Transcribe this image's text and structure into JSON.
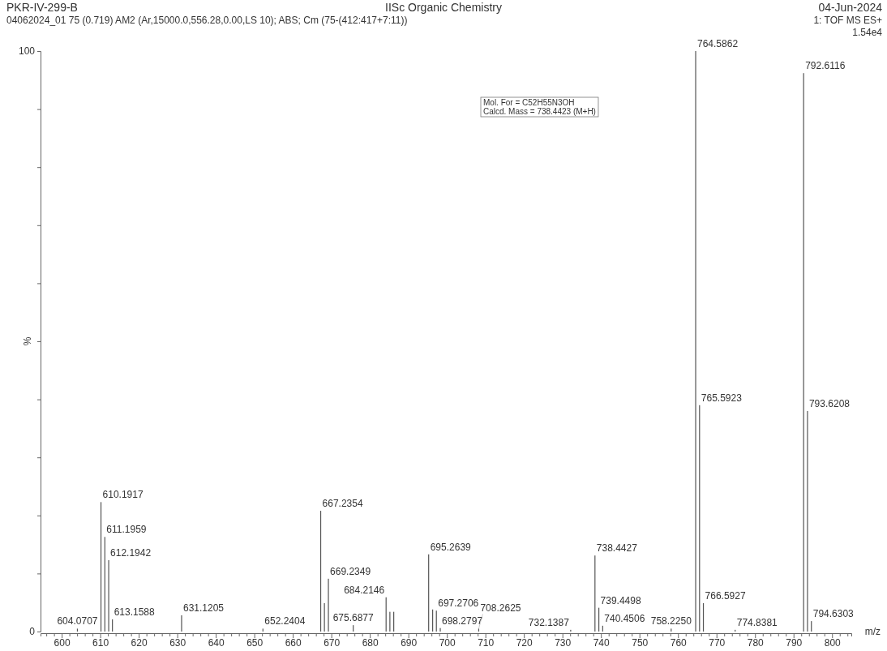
{
  "chart_data": {
    "type": "bar",
    "title": "IISc Organic Chemistry",
    "subtitle": "04062024_01 75 (0.719) AM2 (Ar,15000.0,556.28,0.00,LS 10); ABS; Cm (75-(412:417+7:11))",
    "xlabel": "m/z",
    "ylabel": "%",
    "annotations": [
      "PKR-IV-299-B",
      "04-Jun-2024",
      "1: TOF MS ES+",
      "1.54e4",
      "Mol. For = C52H55N3OH\nCalcd. Mass = 738.4423 (M+H)",
      {
        "text": "604.0707",
        "x": 604.0707,
        "y": 0.5
      },
      {
        "text": "610.1917",
        "x": 610.1917,
        "y": 22.3
      },
      {
        "text": "611.1959",
        "x": 611.1959,
        "y": 16.3
      },
      {
        "text": "612.1942",
        "x": 612.1942,
        "y": 12.3
      },
      {
        "text": "613.1588",
        "x": 613.1588,
        "y": 2.1
      },
      {
        "text": "631.1205",
        "x": 631.1205,
        "y": 2.8
      },
      {
        "text": "652.2404",
        "x": 652.2404,
        "y": 0.5
      },
      {
        "text": "667.2354",
        "x": 667.2354,
        "y": 20.8
      },
      {
        "text": "669.2349",
        "x": 669.2349,
        "y": 9.1
      },
      {
        "text": "675.6877",
        "x": 675.6877,
        "y": 1.1
      },
      {
        "text": "684.2146",
        "x": 684.2146,
        "y": 5.9
      },
      {
        "text": "695.2639",
        "x": 695.2639,
        "y": 13.3
      },
      {
        "text": "697.2706",
        "x": 697.2706,
        "y": 3.6
      },
      {
        "text": "698.2797",
        "x": 698.2797,
        "y": 0.6
      },
      {
        "text": "708.2625",
        "x": 708.2625,
        "y": 0.5
      },
      {
        "text": "732.1387",
        "x": 732.1387,
        "y": 0.3
      },
      {
        "text": "738.4427",
        "x": 738.4427,
        "y": 13.1
      },
      {
        "text": "739.4498",
        "x": 739.4498,
        "y": 4.1
      },
      {
        "text": "740.4506",
        "x": 740.4506,
        "y": 1.0
      },
      {
        "text": "758.2250",
        "x": 758.225,
        "y": 0.5
      },
      {
        "text": "764.5862",
        "x": 764.5862,
        "y": 100
      },
      {
        "text": "765.5923",
        "x": 765.5923,
        "y": 39.0
      },
      {
        "text": "766.5927",
        "x": 766.5927,
        "y": 4.9
      },
      {
        "text": "774.8381",
        "x": 774.8381,
        "y": 0.3
      },
      {
        "text": "792.6116",
        "x": 792.6116,
        "y": 96.2
      },
      {
        "text": "793.6208",
        "x": 793.6208,
        "y": 38.0
      },
      {
        "text": "794.6303",
        "x": 794.6303,
        "y": 1.8
      }
    ],
    "x": [
      604.0707,
      610.1917,
      611.1959,
      612.1942,
      613.1588,
      631.1205,
      652.2404,
      667.2354,
      668.2,
      669.2349,
      675.6877,
      684.2146,
      685.2,
      686.2,
      695.2639,
      696.3,
      697.2706,
      698.2797,
      708.2625,
      732.1387,
      738.4427,
      739.4498,
      740.4506,
      758.225,
      764.5862,
      765.5923,
      766.5927,
      774.8381,
      792.6116,
      793.6208,
      794.6303
    ],
    "values": [
      0.5,
      22.3,
      16.3,
      12.3,
      2.1,
      2.8,
      0.5,
      20.8,
      4.9,
      9.1,
      1.1,
      5.9,
      3.4,
      3.4,
      13.3,
      3.8,
      3.6,
      0.6,
      0.5,
      0.3,
      13.1,
      4.1,
      1.0,
      0.5,
      100,
      39.0,
      4.9,
      0.3,
      96.2,
      38.0,
      1.8
    ],
    "color": "#555555",
    "xlim": [
      594.5,
      805
    ],
    "xticks": [
      600,
      610,
      620,
      630,
      640,
      650,
      660,
      670,
      680,
      690,
      700,
      710,
      720,
      730,
      740,
      750,
      760,
      770,
      780,
      790,
      800,
      {
        "value": 596,
        "label": null
      },
      {
        "value": 598,
        "label": null
      },
      {
        "value": 602,
        "label": null
      },
      {
        "value": 604,
        "label": null
      },
      {
        "value": 606,
        "label": null
      },
      {
        "value": 608,
        "label": null
      },
      {
        "value": 612,
        "label": null
      },
      {
        "value": 614,
        "label": null
      },
      {
        "value": 616,
        "label": null
      },
      {
        "value": 618,
        "label": null
      },
      {
        "value": 622,
        "label": null
      },
      {
        "value": 624,
        "label": null
      },
      {
        "value": 626,
        "label": null
      },
      {
        "value": 628,
        "label": null
      },
      {
        "value": 632,
        "label": null
      },
      {
        "value": 634,
        "label": null
      },
      {
        "value": 636,
        "label": null
      },
      {
        "value": 638,
        "label": null
      },
      {
        "value": 642,
        "label": null
      },
      {
        "value": 644,
        "label": null
      },
      {
        "value": 646,
        "label": null
      },
      {
        "value": 648,
        "label": null
      },
      {
        "value": 652,
        "label": null
      },
      {
        "value": 654,
        "label": null
      },
      {
        "value": 656,
        "label": null
      },
      {
        "value": 658,
        "label": null
      },
      {
        "value": 662,
        "label": null
      },
      {
        "value": 664,
        "label": null
      },
      {
        "value": 666,
        "label": null
      },
      {
        "value": 668,
        "label": null
      },
      {
        "value": 672,
        "label": null
      },
      {
        "value": 674,
        "label": null
      },
      {
        "value": 676,
        "label": null
      },
      {
        "value": 678,
        "label": null
      },
      {
        "value": 682,
        "label": null
      },
      {
        "value": 684,
        "label": null
      },
      {
        "value": 686,
        "label": null
      },
      {
        "value": 688,
        "label": null
      },
      {
        "value": 692,
        "label": null
      },
      {
        "value": 694,
        "label": null
      },
      {
        "value": 696,
        "label": null
      },
      {
        "value": 698,
        "label": null
      },
      {
        "value": 702,
        "label": null
      },
      {
        "value": 704,
        "label": null
      },
      {
        "value": 706,
        "label": null
      },
      {
        "value": 708,
        "label": null
      },
      {
        "value": 712,
        "label": null
      },
      {
        "value": 714,
        "label": null
      },
      {
        "value": 716,
        "label": null
      },
      {
        "value": 718,
        "label": null
      },
      {
        "value": 722,
        "label": null
      },
      {
        "value": 724,
        "label": null
      },
      {
        "value": 726,
        "label": null
      },
      {
        "value": 728,
        "label": null
      },
      {
        "value": 732,
        "label": null
      },
      {
        "value": 734,
        "label": null
      },
      {
        "value": 736,
        "label": null
      },
      {
        "value": 738,
        "label": null
      },
      {
        "value": 742,
        "label": null
      },
      {
        "value": 744,
        "label": null
      },
      {
        "value": 746,
        "label": null
      },
      {
        "value": 748,
        "label": null
      },
      {
        "value": 752,
        "label": null
      },
      {
        "value": 754,
        "label": null
      },
      {
        "value": 756,
        "label": null
      },
      {
        "value": 758,
        "label": null
      },
      {
        "value": 762,
        "label": null
      },
      {
        "value": 764,
        "label": null
      },
      {
        "value": 766,
        "label": null
      },
      {
        "value": 768,
        "label": null
      },
      {
        "value": 772,
        "label": null
      },
      {
        "value": 774,
        "label": null
      },
      {
        "value": 776,
        "label": null
      },
      {
        "value": 778,
        "label": null
      },
      {
        "value": 782,
        "label": null
      },
      {
        "value": 784,
        "label": null
      },
      {
        "value": 786,
        "label": null
      },
      {
        "value": 788,
        "label": null
      },
      {
        "value": 792,
        "label": null
      },
      {
        "value": 794,
        "label": null
      },
      {
        "value": 796,
        "label": null
      },
      {
        "value": 798,
        "label": null
      },
      {
        "value": 802,
        "label": null
      },
      {
        "value": 804,
        "label": null
      }
    ],
    "ylim": [
      0,
      100
    ],
    "yticks": [
      0,
      {
        "value": 10,
        "label": null
      },
      {
        "value": 20,
        "label": null
      },
      {
        "value": 30,
        "label": null
      },
      {
        "value": 40,
        "label": null
      },
      {
        "value": 50,
        "label": null
      },
      {
        "value": 60,
        "label": null
      },
      {
        "value": 70,
        "label": null
      },
      {
        "value": 80,
        "label": null
      },
      {
        "value": 90,
        "label": null
      },
      100
    ],
    "grid": false
  }
}
